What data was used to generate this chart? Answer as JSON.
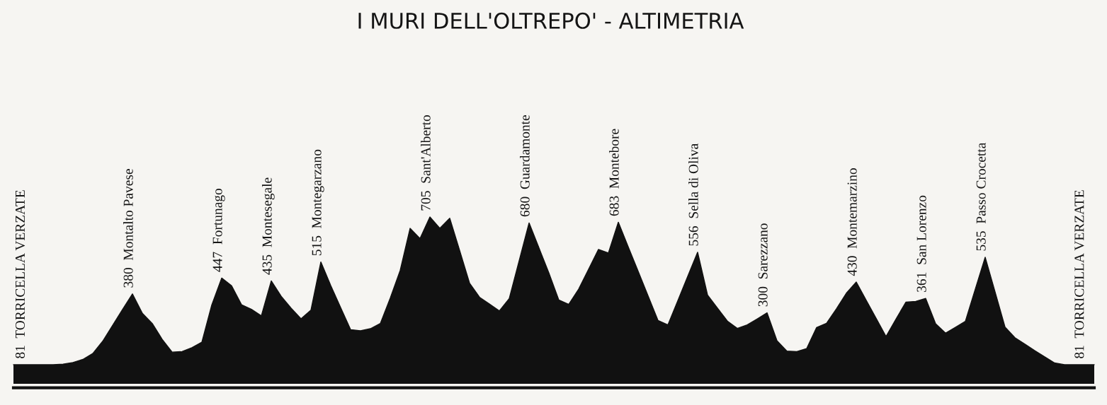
{
  "chart_data": {
    "type": "area",
    "title": "I MURI DELL'OLTREPO' - ALTIMETRIA",
    "categories": [
      null,
      null,
      null,
      null,
      null,
      null,
      null,
      null,
      null,
      null,
      null,
      null,
      null,
      null,
      null,
      null,
      null,
      null,
      null,
      null,
      null,
      null,
      null,
      null,
      null,
      null,
      null,
      null,
      null,
      null,
      null,
      null,
      null,
      null,
      null,
      null,
      null,
      null,
      null,
      null,
      null,
      null,
      null,
      null,
      null,
      null,
      null,
      null,
      null,
      null,
      null,
      null,
      null,
      null,
      null,
      null,
      null,
      null,
      null,
      null,
      null,
      null,
      null,
      null,
      null,
      null,
      null,
      null,
      null,
      null,
      null,
      null,
      null,
      null,
      null,
      null,
      null,
      null,
      null,
      null,
      null,
      null,
      null,
      null,
      null,
      null,
      null,
      null,
      null,
      null,
      null,
      null,
      null,
      null,
      null,
      null,
      null,
      null,
      null,
      null,
      null,
      null,
      null,
      null,
      null,
      null,
      null,
      null,
      null,
      null
    ],
    "values": [
      81,
      81,
      81,
      81,
      81,
      83,
      90,
      103,
      128,
      180,
      247,
      314,
      380,
      298,
      255,
      188,
      134,
      136,
      153,
      176,
      333,
      447,
      414,
      334,
      315,
      287,
      435,
      370,
      320,
      275,
      311,
      515,
      415,
      322,
      229,
      224,
      233,
      255,
      362,
      479,
      657,
      614,
      705,
      657,
      700,
      563,
      425,
      366,
      337,
      308,
      360,
      520,
      680,
      574,
      468,
      354,
      336,
      400,
      484,
      568,
      553,
      683,
      579,
      476,
      372,
      268,
      249,
      351,
      454,
      556,
      375,
      320,
      265,
      234,
      249,
      274,
      300,
      182,
      138,
      136,
      149,
      238,
      256,
      317,
      383,
      430,
      353,
      277,
      200,
      273,
      345,
      348,
      361,
      254,
      214,
      239,
      264,
      400,
      535,
      388,
      240,
      195,
      168,
      140,
      114,
      88,
      81,
      81,
      81,
      81
    ],
    "value_labels": [
      "81  TORRICELLA VERZATE",
      null,
      null,
      null,
      null,
      null,
      null,
      null,
      null,
      null,
      null,
      null,
      "380  Montalto Pavese",
      null,
      null,
      null,
      null,
      null,
      null,
      null,
      null,
      "447  Fortunago",
      null,
      null,
      null,
      null,
      "435  Montesegale",
      null,
      null,
      null,
      null,
      "515  Montegarzano",
      null,
      null,
      null,
      null,
      null,
      null,
      null,
      null,
      null,
      null,
      "705  Sant'Alberto",
      null,
      null,
      null,
      null,
      null,
      null,
      null,
      null,
      null,
      "680  Guardamonte",
      null,
      null,
      null,
      null,
      null,
      null,
      null,
      null,
      "683  Montebore",
      null,
      null,
      null,
      null,
      null,
      null,
      null,
      "556  Sella di Oliva",
      null,
      null,
      null,
      null,
      null,
      null,
      "300  Sarezzano",
      null,
      null,
      null,
      null,
      null,
      null,
      null,
      null,
      "430  Montemarzino",
      null,
      null,
      null,
      null,
      null,
      null,
      "361  San Lorenzo",
      null,
      null,
      null,
      null,
      null,
      "535  Passo Crocetta",
      null,
      null,
      null,
      null,
      null,
      null,
      null,
      null,
      null,
      null,
      "81  TORRICELLA VERZATE"
    ],
    "color": "#111111",
    "tick_labels": false
  }
}
